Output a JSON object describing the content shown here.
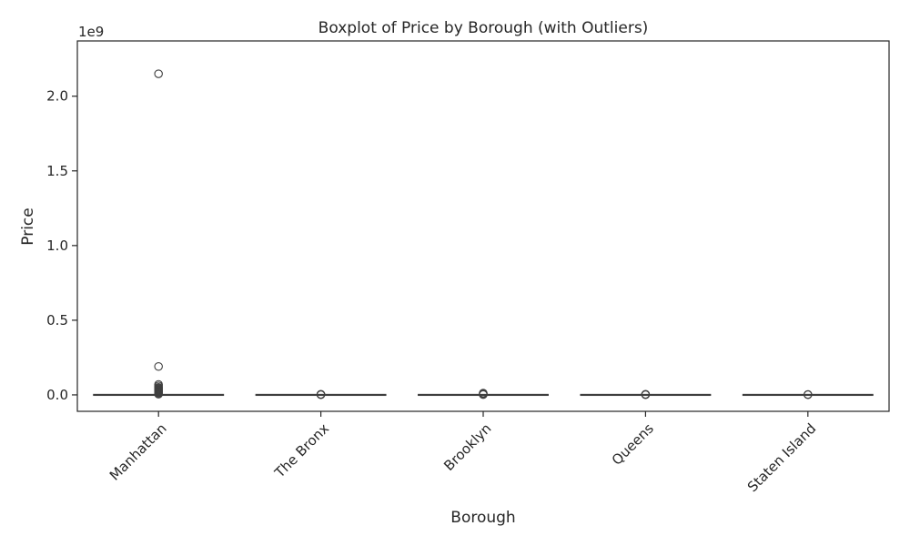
{
  "chart_data": {
    "type": "box",
    "title": "Boxplot of Price by Borough (with Outliers)",
    "xlabel": "Borough",
    "ylabel": "Price",
    "y_offset_label": "1e9",
    "y_scale_factor": 1000000000,
    "ylim": [
      -0.11,
      2.37
    ],
    "yticks": [
      0.0,
      0.5,
      1.0,
      1.5,
      2.0
    ],
    "ytick_labels": [
      "0.0",
      "0.5",
      "1.0",
      "1.5",
      "2.0"
    ],
    "grid": false,
    "categories": [
      "Manhattan",
      "The Bronx",
      "Brooklyn",
      "Queens",
      "Staten Island"
    ],
    "series": [
      {
        "category": "Manhattan",
        "min": 0.0,
        "q1": 0.0,
        "median": 0.0,
        "q3": 0.0,
        "max": 0.002,
        "outliers": [
          2.15,
          0.19,
          0.07,
          0.06,
          0.05,
          0.045,
          0.04,
          0.035,
          0.03,
          0.025,
          0.02,
          0.015,
          0.01,
          0.005
        ]
      },
      {
        "category": "The Bronx",
        "min": 0.0,
        "q1": 0.0,
        "median": 0.0,
        "q3": 0.0,
        "max": 0.0005,
        "outliers": [
          0.004,
          0.002,
          0.001
        ]
      },
      {
        "category": "Brooklyn",
        "min": 0.0,
        "q1": 0.0,
        "median": 0.0,
        "q3": 0.0,
        "max": 0.001,
        "outliers": [
          0.012,
          0.008,
          0.004,
          0.002
        ]
      },
      {
        "category": "Queens",
        "min": 0.0,
        "q1": 0.0,
        "median": 0.0,
        "q3": 0.0,
        "max": 0.0005,
        "outliers": [
          0.004,
          0.002,
          0.001
        ]
      },
      {
        "category": "Staten Island",
        "min": 0.0,
        "q1": 0.0,
        "median": 0.0,
        "q3": 0.0,
        "max": 0.0005,
        "outliers": [
          0.003,
          0.001
        ]
      }
    ]
  },
  "colors": {
    "box_fill": "#ffffff",
    "line": "#3f3f3f",
    "axes": "#262626",
    "text": "#262626"
  }
}
